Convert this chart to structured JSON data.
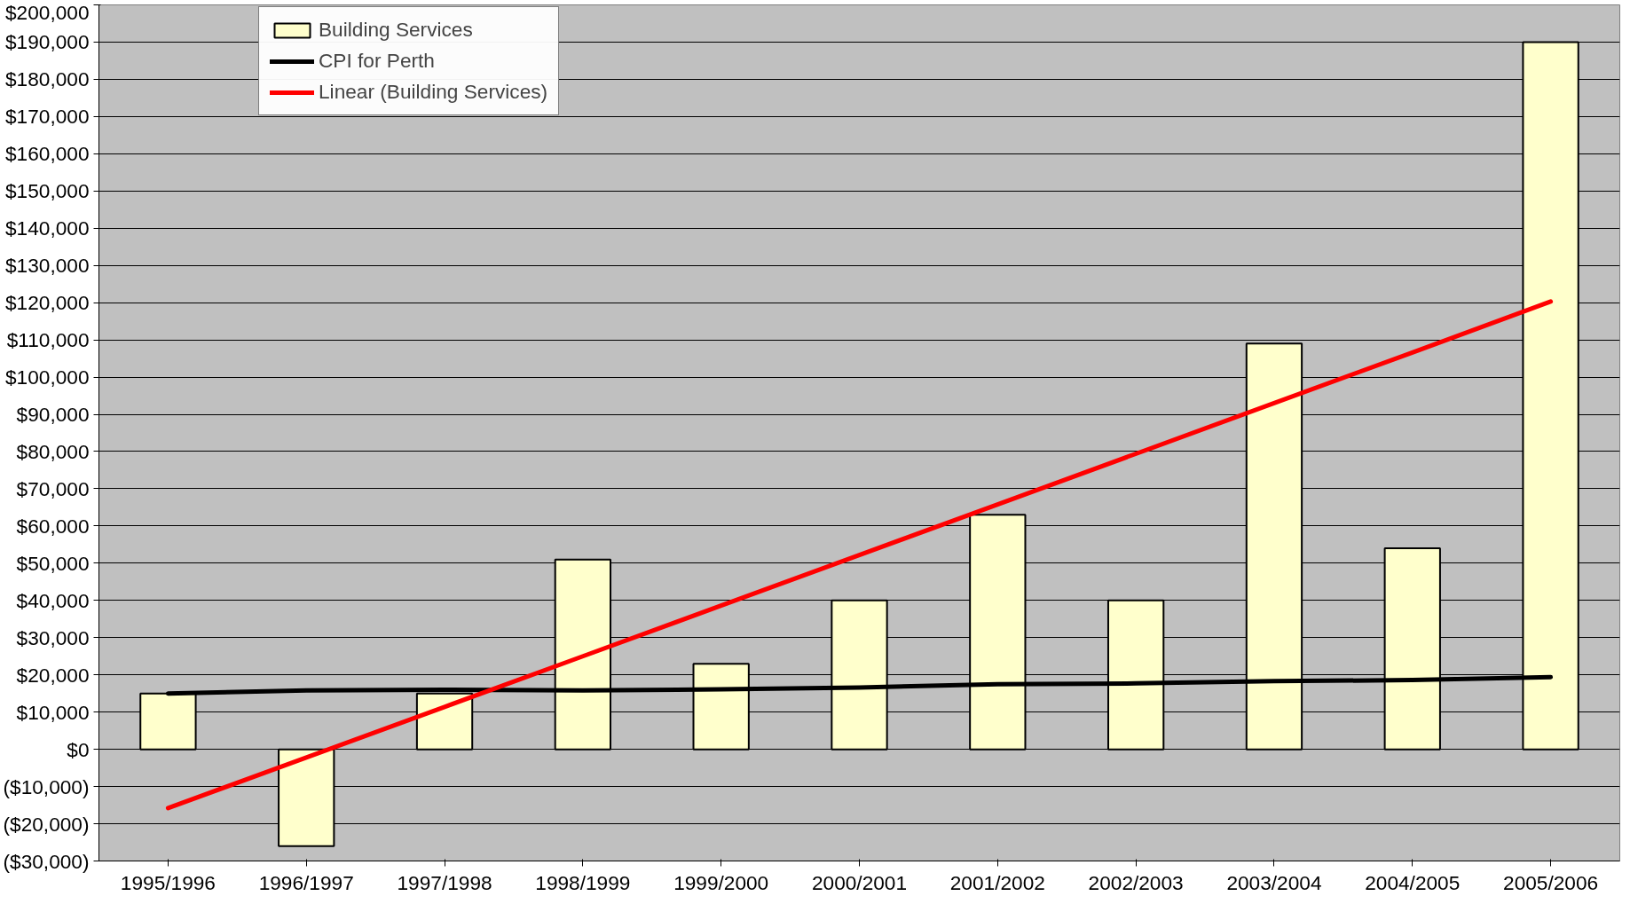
{
  "chart_data": {
    "type": "bar",
    "categories": [
      "1995/1996",
      "1996/1997",
      "1997/1998",
      "1998/1999",
      "1999/2000",
      "2000/2001",
      "2001/2002",
      "2002/2003",
      "2003/2004",
      "2004/2005",
      "2005/2006"
    ],
    "series": [
      {
        "name": "Building Services",
        "color": "#ffffcc",
        "values": [
          15000,
          -26000,
          15000,
          51000,
          23000,
          40000,
          63000,
          40000,
          109000,
          54000,
          190000
        ]
      },
      {
        "name": "CPI for Perth",
        "type": "line",
        "color": "#000000",
        "values": [
          15000,
          15800,
          16000,
          15800,
          16100,
          16600,
          17500,
          17700,
          18300,
          18600,
          19400
        ]
      },
      {
        "name": "Linear (Building Services)",
        "type": "line",
        "color": "#ff0000",
        "values": [
          -15800,
          -2200,
          11400,
          25000,
          38600,
          52200,
          65800,
          79400,
          93000,
          106600,
          120300
        ]
      }
    ],
    "ylim": [
      -30000,
      200000
    ],
    "yticks": [
      {
        "value": -30000,
        "label": "($30,000)"
      },
      {
        "value": -20000,
        "label": "($20,000)"
      },
      {
        "value": -10000,
        "label": "($10,000)"
      },
      {
        "value": 0,
        "label": "$0"
      },
      {
        "value": 10000,
        "label": "$10,000"
      },
      {
        "value": 20000,
        "label": "$20,000"
      },
      {
        "value": 30000,
        "label": "$30,000"
      },
      {
        "value": 40000,
        "label": "$40,000"
      },
      {
        "value": 50000,
        "label": "$50,000"
      },
      {
        "value": 60000,
        "label": "$60,000"
      },
      {
        "value": 70000,
        "label": "$70,000"
      },
      {
        "value": 80000,
        "label": "$80,000"
      },
      {
        "value": 90000,
        "label": "$90,000"
      },
      {
        "value": 100000,
        "label": "$100,000"
      },
      {
        "value": 110000,
        "label": "$110,000"
      },
      {
        "value": 120000,
        "label": "$120,000"
      },
      {
        "value": 130000,
        "label": "$130,000"
      },
      {
        "value": 140000,
        "label": "$140,000"
      },
      {
        "value": 150000,
        "label": "$150,000"
      },
      {
        "value": 160000,
        "label": "$160,000"
      },
      {
        "value": 170000,
        "label": "$170,000"
      },
      {
        "value": 180000,
        "label": "$180,000"
      },
      {
        "value": 190000,
        "label": "$190,000"
      },
      {
        "value": 200000,
        "label": "$200,000"
      }
    ],
    "grid": "y",
    "legend": "top left"
  }
}
